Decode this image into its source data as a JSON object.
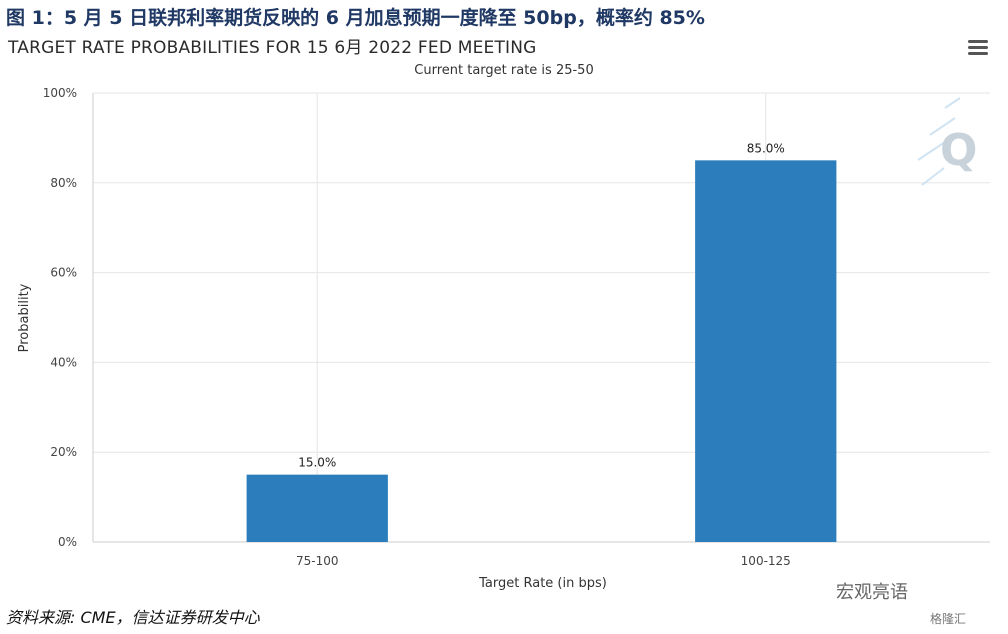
{
  "figure_title": "图 1：5 月 5 日联邦利率期货反映的 6 月加息预期一度降至 50bp，概率约 85%",
  "source_note": "资料来源: CME，信达证券研发中心",
  "watermark": "宏观亮语",
  "watermark_sub": "格隆汇",
  "colors": {
    "bar": "#2b7ebb",
    "grid": "#e6e6e6",
    "title": "#1f3864"
  },
  "chart_data": {
    "type": "bar",
    "title": "TARGET RATE PROBABILITIES FOR 15 6月 2022 FED MEETING",
    "subtitle": "Current target rate is 25-50",
    "xlabel": "Target Rate (in bps)",
    "ylabel": "Probability",
    "categories": [
      "75-100",
      "100-125"
    ],
    "values": [
      15.0,
      85.0
    ],
    "data_labels": [
      "15.0%",
      "85.0%"
    ],
    "ylim": [
      0,
      100
    ],
    "yticks": [
      "0%",
      "20%",
      "40%",
      "60%",
      "80%",
      "100%"
    ],
    "grid": true,
    "legend": "none"
  }
}
